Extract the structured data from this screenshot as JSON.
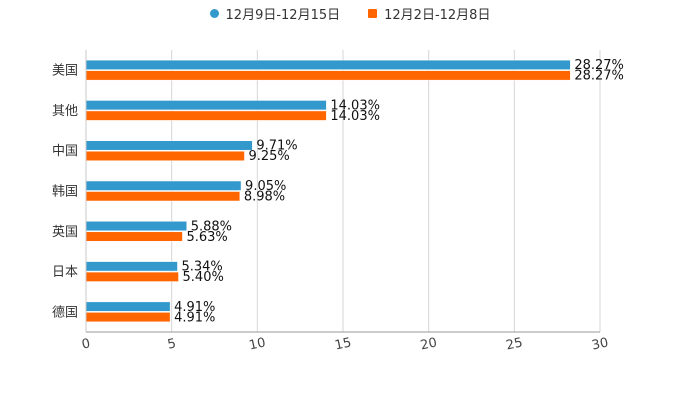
{
  "chart_data": {
    "type": "bar",
    "orientation": "horizontal",
    "title": "",
    "xlabel": "",
    "ylabel": "",
    "xlim": [
      0,
      30
    ],
    "ticks": [
      0,
      5,
      10,
      15,
      20,
      25,
      30
    ],
    "grid": true,
    "legend_position": "top-center",
    "categories": [
      "美国",
      "其他",
      "中国",
      "韩国",
      "英国",
      "日本",
      "德国"
    ],
    "series": [
      {
        "name": "12月9日-12月15日",
        "color": "#3399cc",
        "marker": "circle",
        "values": [
          28.27,
          14.03,
          9.71,
          9.05,
          5.88,
          5.34,
          4.91
        ],
        "labels": [
          "28.27%",
          "14.03%",
          "9.71%",
          "9.05%",
          "5.88%",
          "5.34%",
          "4.91%"
        ]
      },
      {
        "name": "12月2日-12月8日",
        "color": "#ff6600",
        "marker": "square",
        "values": [
          28.27,
          14.03,
          9.25,
          8.98,
          5.63,
          5.4,
          4.91
        ],
        "labels": [
          "28.27%",
          "14.03%",
          "9.25%",
          "8.98%",
          "5.63%",
          "5.40%",
          "4.91%"
        ]
      }
    ]
  }
}
